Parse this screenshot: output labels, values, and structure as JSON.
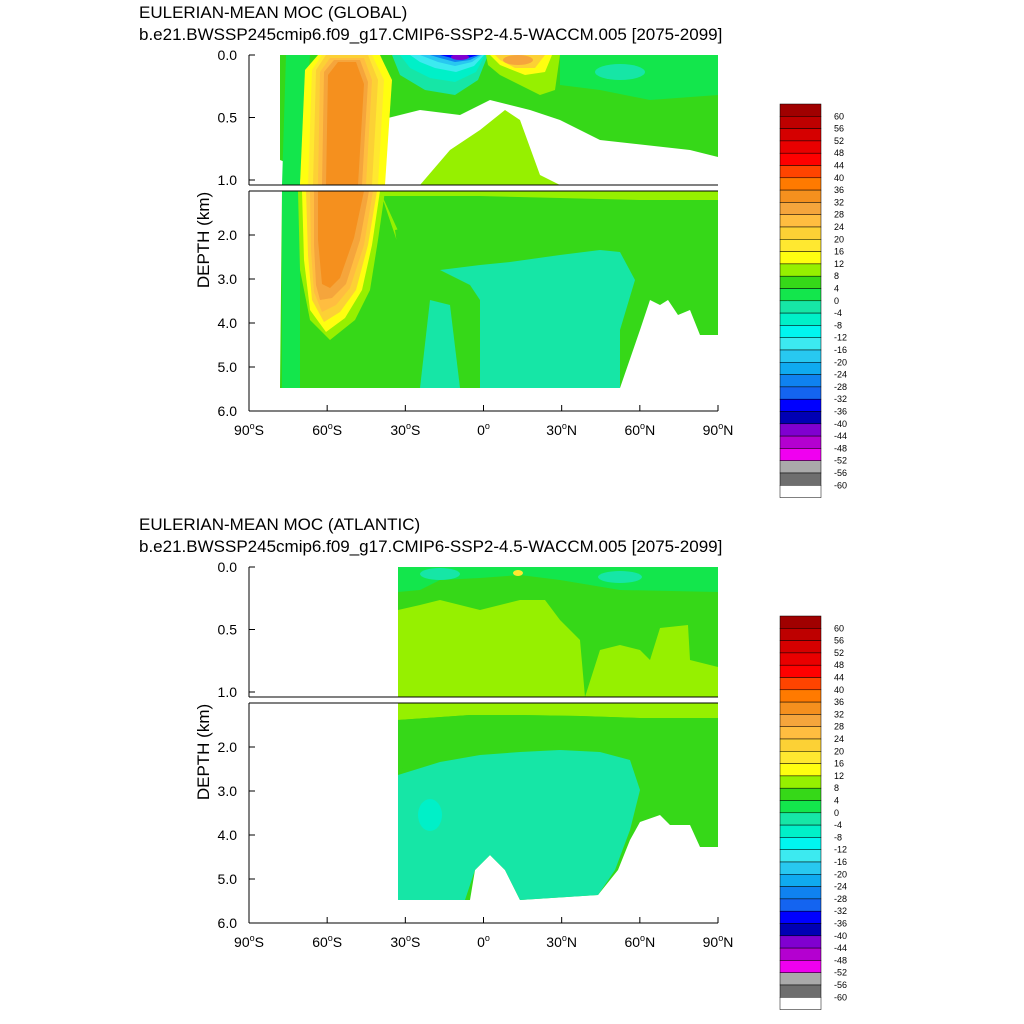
{
  "chart_data": [
    {
      "type": "heatmap",
      "title": "EULERIAN-MEAN MOC (GLOBAL)",
      "subtitle": "b.e21.BWSSP245cmip6.f09_g17.CMIP6-SSP2-4.5-WACCM.005 [2075-2099]",
      "ylabel": "DEPTH (km)",
      "xlabel": "",
      "xlim": [
        -90,
        90
      ],
      "ylim": [
        0,
        6
      ],
      "y_split_km": 1.0,
      "x_ticks": [
        -90,
        -60,
        -30,
        0,
        30,
        60,
        90
      ],
      "x_tick_labels": [
        {
          "main": "90",
          "deg": "o",
          "hem": "S"
        },
        {
          "main": "60",
          "deg": "o",
          "hem": "S"
        },
        {
          "main": "30",
          "deg": "o",
          "hem": "S"
        },
        {
          "main": "0",
          "deg": "o",
          "hem": ""
        },
        {
          "main": "30",
          "deg": "o",
          "hem": "N"
        },
        {
          "main": "60",
          "deg": "o",
          "hem": "N"
        },
        {
          "main": "90",
          "deg": "o",
          "hem": "N"
        }
      ],
      "y_ticks_upper": [
        0.0,
        0.5,
        1.0
      ],
      "y_tick_labels_upper": [
        "0.0",
        "0.5",
        "1.0"
      ],
      "y_ticks_lower": [
        2.0,
        3.0,
        4.0,
        5.0,
        6.0
      ],
      "y_tick_labels_lower": [
        "2.0",
        "3.0",
        "4.0",
        "5.0",
        "6.0"
      ],
      "features": [
        {
          "name": "southern-ocean-deacon-cell",
          "kind": "max",
          "lat": -50,
          "depth_km": 0.2,
          "value": 36
        },
        {
          "name": "southern-ocean-deep-cell",
          "kind": "max",
          "lat": -50,
          "depth_km": 2.5,
          "value": 32
        },
        {
          "name": "south-subtropical-cell",
          "kind": "min",
          "lat": -10,
          "depth_km": 0.05,
          "value": -36
        },
        {
          "name": "north-subtropical-cell",
          "kind": "max",
          "lat": 10,
          "depth_km": 0.05,
          "value": 28
        }
      ],
      "ocean_extent": {
        "lat_min": -77,
        "lat_max": 90,
        "max_depth_km": 5.5
      }
    },
    {
      "type": "heatmap",
      "title": "EULERIAN-MEAN MOC (ATLANTIC)",
      "subtitle": "b.e21.BWSSP245cmip6.f09_g17.CMIP6-SSP2-4.5-WACCM.005 [2075-2099]",
      "ylabel": "DEPTH (km)",
      "xlabel": "",
      "xlim": [
        -90,
        90
      ],
      "ylim": [
        0,
        6
      ],
      "y_split_km": 1.0,
      "x_ticks": [
        -90,
        -60,
        -30,
        0,
        30,
        60,
        90
      ],
      "x_tick_labels": [
        {
          "main": "90",
          "deg": "o",
          "hem": "S"
        },
        {
          "main": "60",
          "deg": "o",
          "hem": "S"
        },
        {
          "main": "30",
          "deg": "o",
          "hem": "S"
        },
        {
          "main": "0",
          "deg": "o",
          "hem": ""
        },
        {
          "main": "30",
          "deg": "o",
          "hem": "N"
        },
        {
          "main": "60",
          "deg": "o",
          "hem": "N"
        },
        {
          "main": "90",
          "deg": "o",
          "hem": "N"
        }
      ],
      "y_ticks_upper": [
        0.0,
        0.5,
        1.0
      ],
      "y_tick_labels_upper": [
        "0.0",
        "0.5",
        "1.0"
      ],
      "y_ticks_lower": [
        2.0,
        3.0,
        4.0,
        5.0,
        6.0
      ],
      "y_tick_labels_lower": [
        "2.0",
        "3.0",
        "4.0",
        "5.0",
        "6.0"
      ],
      "features": [
        {
          "name": "amoc-upper-cell",
          "kind": "max",
          "lat": 15,
          "depth_km": 0.7,
          "value": 12
        },
        {
          "name": "deep-counter-cell",
          "kind": "min",
          "lat": 0,
          "depth_km": 3.5,
          "value": -4
        }
      ],
      "ocean_extent": {
        "lat_min": -34,
        "lat_max": 90,
        "max_depth_km": 5.5
      }
    }
  ],
  "colorbar": {
    "levels": [
      "60",
      "56",
      "52",
      "48",
      "44",
      "40",
      "36",
      "32",
      "28",
      "24",
      "20",
      "16",
      "12",
      "8",
      "4",
      "0",
      "-4",
      "-8",
      "-12",
      "-16",
      "-20",
      "-24",
      "-28",
      "-32",
      "-36",
      "-40",
      "-44",
      "-48",
      "-52",
      "-56",
      "-60"
    ],
    "colors": [
      "#a00000",
      "#be0000",
      "#d50000",
      "#e90000",
      "#ff0000",
      "#ff4400",
      "#ff7a00",
      "#f5901e",
      "#f5a53c",
      "#ffbd40",
      "#fcd135",
      "#ffe830",
      "#fffe10",
      "#96f000",
      "#36d818",
      "#13e64c",
      "#16e6a6",
      "#00f0c8",
      "#00f6f0",
      "#3ceaf0",
      "#28c8f0",
      "#0faaf0",
      "#0f82f0",
      "#1464f0",
      "#0000ff",
      "#0000b4",
      "#8000d0",
      "#b400d0",
      "#f000f0",
      "#aaaaaa",
      "#6e6e6e",
      "#ffffff"
    ]
  }
}
